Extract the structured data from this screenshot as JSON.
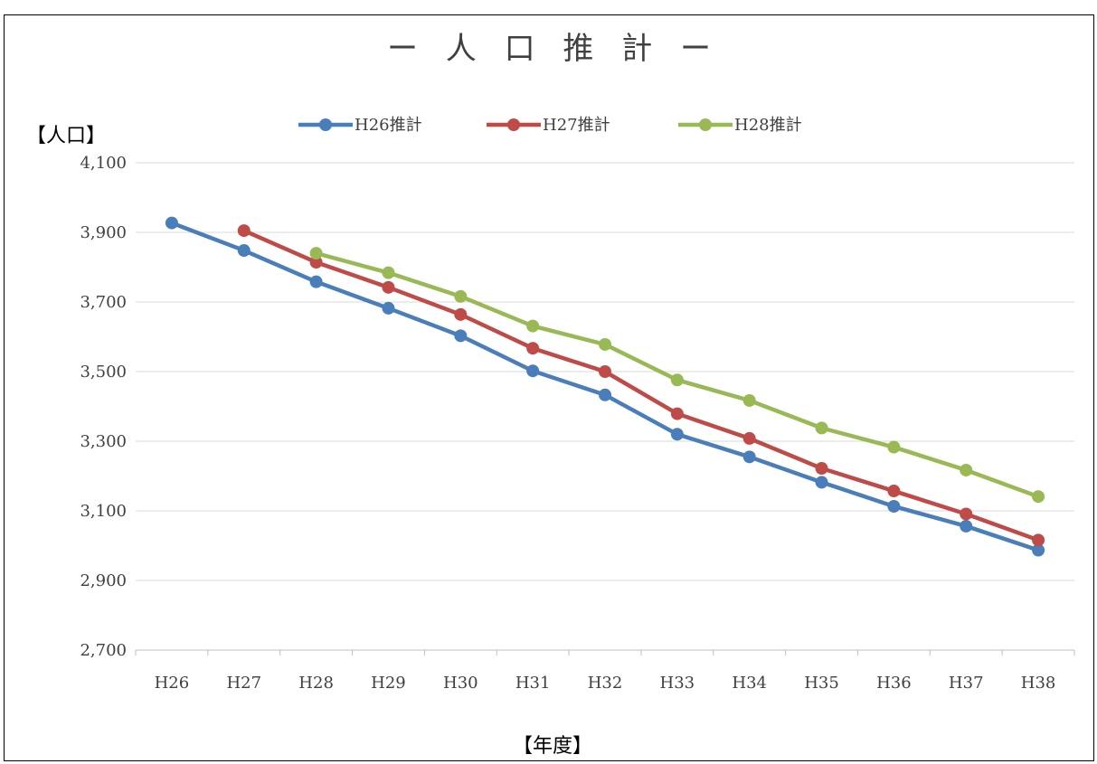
{
  "chart_data": {
    "type": "line",
    "title": "ー 人 口 推 計 ー",
    "xlabel": "【年度】",
    "ylabel": "【人口】",
    "categories": [
      "H26",
      "H27",
      "H28",
      "H29",
      "H30",
      "H31",
      "H32",
      "H33",
      "H34",
      "H35",
      "H36",
      "H37",
      "H38"
    ],
    "ylim": [
      2700,
      4100
    ],
    "yticks": [
      2700,
      2900,
      3100,
      3300,
      3500,
      3700,
      3900,
      4100
    ],
    "ytick_labels": [
      "2,700",
      "2,900",
      "3,100",
      "3,300",
      "3,500",
      "3,700",
      "3,900",
      "4,100"
    ],
    "grid": true,
    "legend_position": "top",
    "series": [
      {
        "name": "H26推計",
        "color": "#4a7ebb",
        "values": [
          3927,
          3848,
          3758,
          3682,
          3603,
          3502,
          3433,
          3320,
          3255,
          3182,
          3113,
          3056,
          2987
        ]
      },
      {
        "name": "H27推計",
        "color": "#be4b48",
        "values": [
          null,
          3905,
          3814,
          3742,
          3664,
          3567,
          3500,
          3379,
          3308,
          3222,
          3157,
          3091,
          3016
        ]
      },
      {
        "name": "H28推計",
        "color": "#98b954",
        "values": [
          null,
          null,
          3840,
          3784,
          3716,
          3631,
          3578,
          3476,
          3417,
          3338,
          3283,
          3217,
          3141
        ]
      }
    ]
  }
}
